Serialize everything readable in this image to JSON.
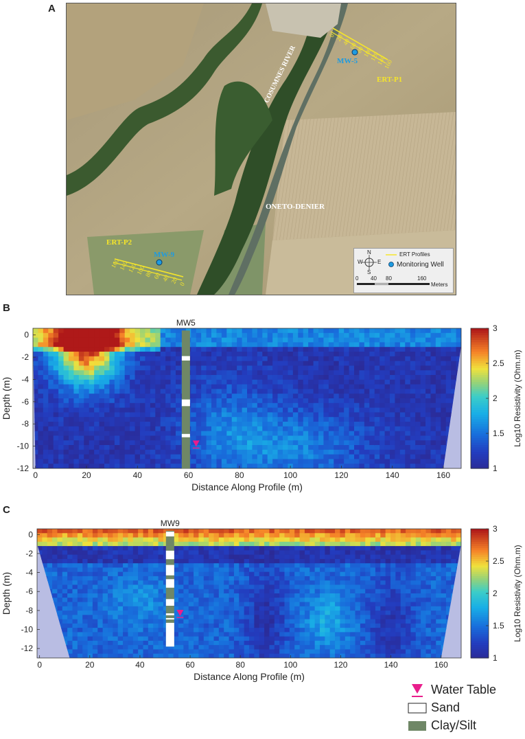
{
  "figure": {
    "panel_a": "A",
    "panel_b": "B",
    "panel_c": "C"
  },
  "map": {
    "labels": {
      "river": "COSUMNES RIVER",
      "oneto": "ONETO-DENIER",
      "ert_p1": "ERT-P1",
      "ert_p2": "ERT-P2",
      "mw5": "MW-5",
      "mw9": "MW-9"
    },
    "p1_ticks": [
      "0",
      "20",
      "40",
      "60",
      "80",
      "100",
      "120",
      "140",
      "160"
    ],
    "p2_ticks": [
      "160",
      "140",
      "120",
      "100",
      "80",
      "60",
      "40",
      "20",
      "0"
    ],
    "legend": {
      "ert_profiles": "ERT Profiles",
      "monitoring_well": "Monitoring Well",
      "compass": {
        "n": "N",
        "s": "S",
        "e": "E",
        "w": "W"
      },
      "scale_ticks": [
        "0",
        "40",
        "80",
        "160"
      ],
      "scale_unit": "Meters"
    },
    "colors": {
      "profile": "#f5e52a",
      "well": "#1e9be0"
    }
  },
  "chart_data": [
    {
      "type": "heatmap",
      "panel": "B",
      "well_label": "MW5",
      "xlabel": "Distance Along Profile (m)",
      "ylabel": "Depth (m)",
      "xlim": [
        -1,
        167
      ],
      "ylim": [
        -12,
        0.6
      ],
      "xticks": [
        "0",
        "20",
        "40",
        "60",
        "80",
        "100",
        "120",
        "140",
        "160"
      ],
      "yticks": [
        "0",
        "-2",
        "-4",
        "-6",
        "-8",
        "-10",
        "-12"
      ],
      "colorbar": {
        "label": "Log10 Resistivity (Ohm.m)",
        "ticks": [
          "1",
          "1.5",
          "2",
          "2.5",
          "3"
        ],
        "range": [
          1,
          3
        ]
      },
      "well_x": 59,
      "water_table": {
        "x": 63,
        "depth": -9.8
      }
    },
    {
      "type": "heatmap",
      "panel": "C",
      "well_label": "MW9",
      "xlabel": "Distance Along Profile (m)",
      "ylabel": "Depth (m)",
      "xlim": [
        -1,
        168
      ],
      "ylim": [
        -13,
        0.6
      ],
      "xticks": [
        "0",
        "20",
        "40",
        "60",
        "80",
        "100",
        "120",
        "140",
        "160"
      ],
      "yticks": [
        "0",
        "-2",
        "-4",
        "-6",
        "-8",
        "-10",
        "-12"
      ],
      "colorbar": {
        "label": "Log10 Resistivity (Ohm.m)",
        "ticks": [
          "1",
          "1.5",
          "2",
          "2.5",
          "3"
        ],
        "range": [
          1,
          3
        ]
      },
      "well_x": 52,
      "water_table": {
        "x": 56,
        "depth": -8.3
      }
    }
  ],
  "key": {
    "water_table": "Water Table",
    "sand": "Sand",
    "clay_silt": "Clay/Silt",
    "colors": {
      "water_table": "#e91e8c",
      "clay_silt": "#6f8766",
      "sand": "#ffffff"
    }
  }
}
